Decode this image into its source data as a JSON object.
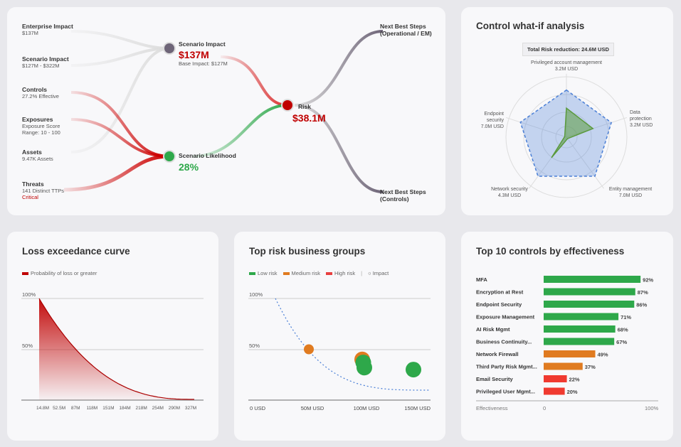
{
  "flow": {
    "inputs": [
      {
        "label": "Enterprise Impact",
        "sub": [
          "$137M"
        ]
      },
      {
        "label": "Scenario Impact",
        "sub": [
          "$127M - $322M"
        ]
      },
      {
        "label": "Controls",
        "sub": [
          "27.2% Effective"
        ]
      },
      {
        "label": "Exposures",
        "sub": [
          "Exposure Score",
          "Range: 10 - 100"
        ]
      },
      {
        "label": "Assets",
        "sub": [
          "9.47K Assets"
        ]
      },
      {
        "label": "Threats",
        "sub": [
          "141 Distinct TTPs"
        ],
        "badge": "Critical"
      }
    ],
    "scenario_impact": {
      "label": "Scenario Impact",
      "value": "$137M",
      "sub": "Base Impact: $127M"
    },
    "scenario_likelihood": {
      "label": "Scenario Likelihood",
      "value": "28%"
    },
    "risk": {
      "label": "Risk",
      "value": "$38.1M"
    },
    "next_steps": [
      {
        "label": "Next Best Steps",
        "sub": "(Operational / EM)"
      },
      {
        "label": "Next Best Steps",
        "sub": "(Controls)"
      }
    ],
    "colors": {
      "red": "#c00000",
      "green": "#2ea84a",
      "gray_node": "#6e6578"
    }
  },
  "whatif": {
    "title": "Control what-if analysis",
    "total": "Total Risk reduction: 24.6M USD",
    "axes": [
      {
        "label": [
          "Privileged account management"
        ],
        "value": "3.2M USD"
      },
      {
        "label": [
          "Data",
          "protection"
        ],
        "value": "3.2M USD"
      },
      {
        "label": [
          "Entity management"
        ],
        "value": "7.0M USD"
      },
      {
        "label": [
          "Network security"
        ],
        "value": "4.3M USD"
      },
      {
        "label": [
          "Endpoint",
          "security"
        ],
        "value": "7.0M USD"
      }
    ],
    "chart_data": {
      "type": "radar",
      "rmax": 10,
      "series": [
        {
          "values": [
            7.8,
            7.8,
            8,
            8,
            8
          ],
          "color": "#4a7fd6",
          "style": "dashed"
        },
        {
          "values": [
            4.8,
            4.6,
            0.3,
            4.2,
            0.3
          ],
          "color": "#5a9a3c"
        }
      ]
    }
  },
  "loss": {
    "title": "Loss exceedance curve",
    "legend": "Probability of loss or greater",
    "chart_data": {
      "type": "area",
      "ylabels": [
        "100%",
        "50%"
      ],
      "xticks": [
        "14.8M",
        "52.5M",
        "87M",
        "118M",
        "151M",
        "184M",
        "218M",
        "254M",
        "290M",
        "327M"
      ],
      "curve": "exponential decay from 100% at 14.8M to ~0% at 327M",
      "color": "#c00000"
    }
  },
  "groups": {
    "title": "Top risk business groups",
    "legend": [
      {
        "label": "Low risk",
        "color": "#2ea84a"
      },
      {
        "label": "Medium risk",
        "color": "#e07b20"
      },
      {
        "label": "High risk",
        "color": "#e84040"
      }
    ],
    "impact_label": "Impact",
    "chart_data": {
      "type": "scatter",
      "xticks": [
        "0 USD",
        "50M USD",
        "100M USD",
        "150M USD"
      ],
      "ylabels": [
        "100%",
        "50%"
      ],
      "xlim": [
        0,
        150
      ],
      "ylim": [
        0,
        100
      ],
      "points": [
        {
          "x": 50,
          "y": 50,
          "r": 7,
          "risk": "Medium risk"
        },
        {
          "x": 100,
          "y": 40,
          "r": 11,
          "risk": "Medium risk"
        },
        {
          "x": 101,
          "y": 37,
          "r": 11,
          "risk": "Low risk"
        },
        {
          "x": 102,
          "y": 32,
          "r": 11,
          "risk": "Low risk"
        },
        {
          "x": 148,
          "y": 30,
          "r": 11,
          "risk": "Low risk"
        }
      ],
      "threshold_curve": "dashed blue"
    }
  },
  "controls": {
    "title": "Top 10 controls by effectiveness",
    "xlabel": "Effectiveness",
    "xmin": "0",
    "xmax": "100%",
    "chart_data": {
      "type": "bar",
      "categories": [
        "MFA",
        "Encryption at Rest",
        "Endpoint Security",
        "Exposure Management",
        "AI Risk Mgmt",
        "Business Continuity...",
        "Network Firewall",
        "Third Party Risk Mgmt...",
        "Email Security",
        "Privileged User Mgmt..."
      ],
      "values": [
        92,
        87,
        86,
        71,
        68,
        67,
        49,
        37,
        22,
        20
      ],
      "labels": [
        "92%",
        "87%",
        "86%",
        "71%",
        "68%",
        "67%",
        "49%",
        "37%",
        "22%",
        "20%"
      ],
      "colors": [
        "#2ea84a",
        "#2ea84a",
        "#2ea84a",
        "#2ea84a",
        "#2ea84a",
        "#2ea84a",
        "#e07b20",
        "#e07b20",
        "#f03a30",
        "#f03a30"
      ]
    }
  }
}
